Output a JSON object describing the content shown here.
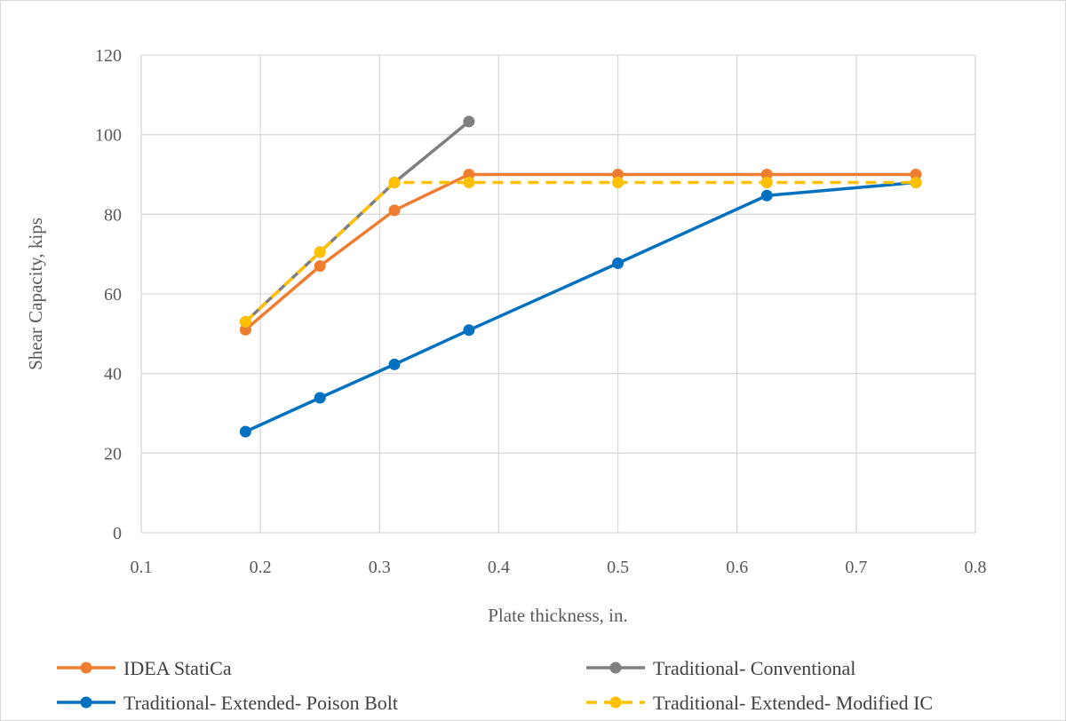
{
  "chart_data": {
    "type": "line",
    "title": "",
    "xlabel": "Plate thickness, in.",
    "ylabel": "Shear Capacity, kips",
    "xlim": [
      0.1,
      0.8
    ],
    "ylim": [
      0,
      120
    ],
    "xticks": [
      0.1,
      0.2,
      0.3,
      0.4,
      0.5,
      0.6,
      0.7,
      0.8
    ],
    "xtick_labels": [
      "0.1",
      "0.2",
      "0.3",
      "0.4",
      "0.5",
      "0.6",
      "0.7",
      "0.8"
    ],
    "yticks": [
      0,
      20,
      40,
      60,
      80,
      100,
      120
    ],
    "ytick_labels": [
      "0",
      "20",
      "40",
      "60",
      "80",
      "100",
      "120"
    ],
    "grid": true,
    "legend_placement": "bottom",
    "series": [
      {
        "name": "IDEA StatiCa",
        "color": "#ED7D31",
        "dash": false,
        "x": [
          0.1875,
          0.25,
          0.3125,
          0.375,
          0.5,
          0.625,
          0.75
        ],
        "y": [
          51,
          67,
          81,
          90,
          90,
          90,
          90
        ]
      },
      {
        "name": "Traditional- Conventional",
        "color": "#7F7F7F",
        "dash": false,
        "x": [
          0.1875,
          0.25,
          0.3125,
          0.375
        ],
        "y": [
          53,
          70.5,
          88,
          103.3
        ]
      },
      {
        "name": "Traditional- Extended- Poison Bolt",
        "color": "#0070C0",
        "dash": false,
        "x": [
          0.1875,
          0.25,
          0.3125,
          0.375,
          0.5,
          0.625,
          0.75
        ],
        "y": [
          25.4,
          33.9,
          42.3,
          50.9,
          67.7,
          84.7,
          88
        ]
      },
      {
        "name": "Traditional- Extended- Modified IC",
        "color": "#FFC000",
        "dash": true,
        "x": [
          0.1875,
          0.25,
          0.3125,
          0.375,
          0.5,
          0.625,
          0.75
        ],
        "y": [
          53,
          70.5,
          88,
          88,
          88,
          88,
          88
        ]
      }
    ]
  }
}
